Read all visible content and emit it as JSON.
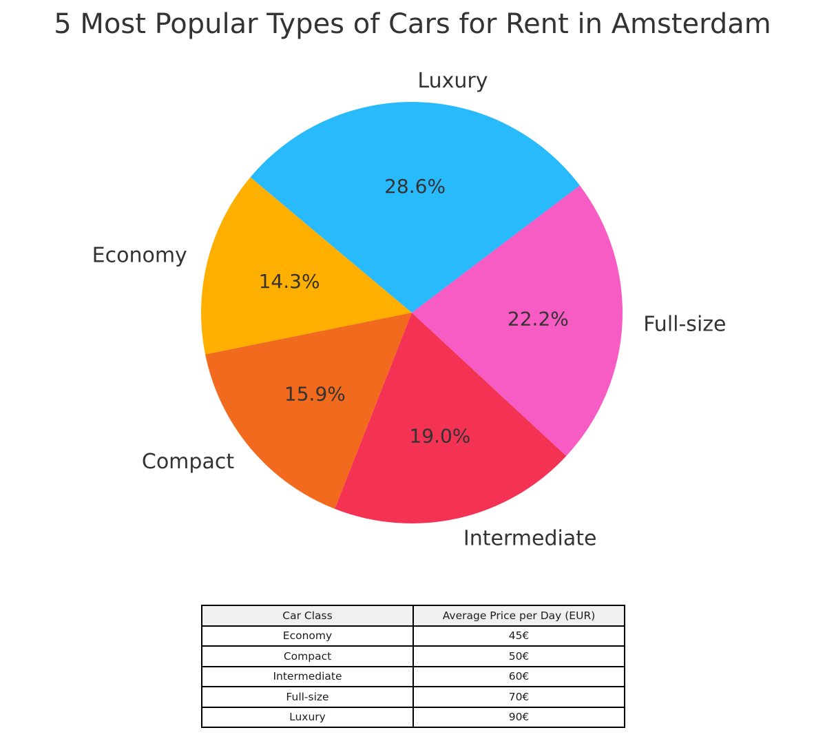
{
  "chart_data": {
    "type": "pie",
    "title": "5 Most Popular Types of Cars for Rent in Amsterdam",
    "labels": [
      "Economy",
      "Compact",
      "Intermediate",
      "Full-size",
      "Luxury"
    ],
    "values": [
      45,
      50,
      60,
      70,
      90
    ],
    "percent_labels": [
      "14.3%",
      "15.9%",
      "19.0%",
      "22.2%",
      "28.6%"
    ],
    "colors": [
      "#FFAF00",
      "#F26A1E",
      "#F43254",
      "#F75BC4",
      "#29BAFC"
    ],
    "startangle": 140,
    "counterclock": true,
    "pctdistance": 0.6,
    "labeldistance": 1.1,
    "legend": "none",
    "text_color": "#333333"
  },
  "table": {
    "headers": [
      "Car Class",
      "Average Price per Day (EUR)"
    ],
    "rows": [
      [
        "Economy",
        "45€"
      ],
      [
        "Compact",
        "50€"
      ],
      [
        "Intermediate",
        "60€"
      ],
      [
        "Full-size",
        "70€"
      ],
      [
        "Luxury",
        "90€"
      ]
    ]
  }
}
